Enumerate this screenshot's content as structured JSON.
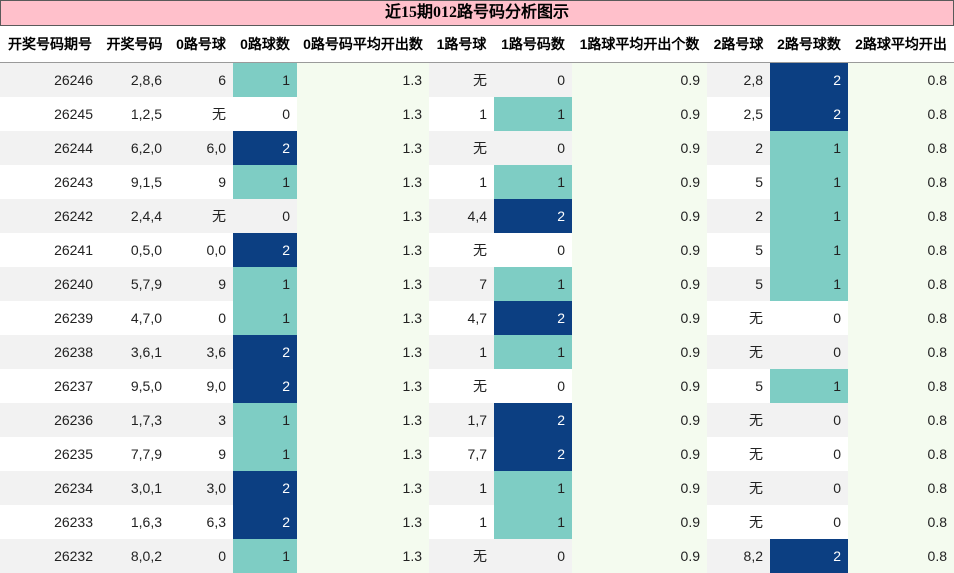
{
  "title": "近15期012路号码分析图示",
  "headers": [
    "开奖号码期号",
    "开奖号码",
    "0路号球",
    "0路球数",
    "0路号码平均开出数",
    "1路号球",
    "1路号码数",
    "1路球平均开出个数",
    "2路号球",
    "2路号球数",
    "2路球平均开出"
  ],
  "colors": {
    "count_1": "#7ecdc4",
    "count_2": "#0c3f82",
    "title_bg": "#ffc0cb",
    "avg_bg": "#f4fbef"
  },
  "rows": [
    {
      "issue": "26246",
      "numbers": "2,8,6",
      "r0": "6",
      "c0": "1",
      "a0": "1.3",
      "r1": "无",
      "c1": "0",
      "a1": "0.9",
      "r2": "2,8",
      "c2": "2",
      "a2": "0.8"
    },
    {
      "issue": "26245",
      "numbers": "1,2,5",
      "r0": "无",
      "c0": "0",
      "a0": "1.3",
      "r1": "1",
      "c1": "1",
      "a1": "0.9",
      "r2": "2,5",
      "c2": "2",
      "a2": "0.8"
    },
    {
      "issue": "26244",
      "numbers": "6,2,0",
      "r0": "6,0",
      "c0": "2",
      "a0": "1.3",
      "r1": "无",
      "c1": "0",
      "a1": "0.9",
      "r2": "2",
      "c2": "1",
      "a2": "0.8"
    },
    {
      "issue": "26243",
      "numbers": "9,1,5",
      "r0": "9",
      "c0": "1",
      "a0": "1.3",
      "r1": "1",
      "c1": "1",
      "a1": "0.9",
      "r2": "5",
      "c2": "1",
      "a2": "0.8"
    },
    {
      "issue": "26242",
      "numbers": "2,4,4",
      "r0": "无",
      "c0": "0",
      "a0": "1.3",
      "r1": "4,4",
      "c1": "2",
      "a1": "0.9",
      "r2": "2",
      "c2": "1",
      "a2": "0.8"
    },
    {
      "issue": "26241",
      "numbers": "0,5,0",
      "r0": "0,0",
      "c0": "2",
      "a0": "1.3",
      "r1": "无",
      "c1": "0",
      "a1": "0.9",
      "r2": "5",
      "c2": "1",
      "a2": "0.8"
    },
    {
      "issue": "26240",
      "numbers": "5,7,9",
      "r0": "9",
      "c0": "1",
      "a0": "1.3",
      "r1": "7",
      "c1": "1",
      "a1": "0.9",
      "r2": "5",
      "c2": "1",
      "a2": "0.8"
    },
    {
      "issue": "26239",
      "numbers": "4,7,0",
      "r0": "0",
      "c0": "1",
      "a0": "1.3",
      "r1": "4,7",
      "c1": "2",
      "a1": "0.9",
      "r2": "无",
      "c2": "0",
      "a2": "0.8"
    },
    {
      "issue": "26238",
      "numbers": "3,6,1",
      "r0": "3,6",
      "c0": "2",
      "a0": "1.3",
      "r1": "1",
      "c1": "1",
      "a1": "0.9",
      "r2": "无",
      "c2": "0",
      "a2": "0.8"
    },
    {
      "issue": "26237",
      "numbers": "9,5,0",
      "r0": "9,0",
      "c0": "2",
      "a0": "1.3",
      "r1": "无",
      "c1": "0",
      "a1": "0.9",
      "r2": "5",
      "c2": "1",
      "a2": "0.8"
    },
    {
      "issue": "26236",
      "numbers": "1,7,3",
      "r0": "3",
      "c0": "1",
      "a0": "1.3",
      "r1": "1,7",
      "c1": "2",
      "a1": "0.9",
      "r2": "无",
      "c2": "0",
      "a2": "0.8"
    },
    {
      "issue": "26235",
      "numbers": "7,7,9",
      "r0": "9",
      "c0": "1",
      "a0": "1.3",
      "r1": "7,7",
      "c1": "2",
      "a1": "0.9",
      "r2": "无",
      "c2": "0",
      "a2": "0.8"
    },
    {
      "issue": "26234",
      "numbers": "3,0,1",
      "r0": "3,0",
      "c0": "2",
      "a0": "1.3",
      "r1": "1",
      "c1": "1",
      "a1": "0.9",
      "r2": "无",
      "c2": "0",
      "a2": "0.8"
    },
    {
      "issue": "26233",
      "numbers": "1,6,3",
      "r0": "6,3",
      "c0": "2",
      "a0": "1.3",
      "r1": "1",
      "c1": "1",
      "a1": "0.9",
      "r2": "无",
      "c2": "0",
      "a2": "0.8"
    },
    {
      "issue": "26232",
      "numbers": "8,0,2",
      "r0": "0",
      "c0": "1",
      "a0": "1.3",
      "r1": "无",
      "c1": "0",
      "a1": "0.9",
      "r2": "8,2",
      "c2": "2",
      "a2": "0.8"
    }
  ]
}
